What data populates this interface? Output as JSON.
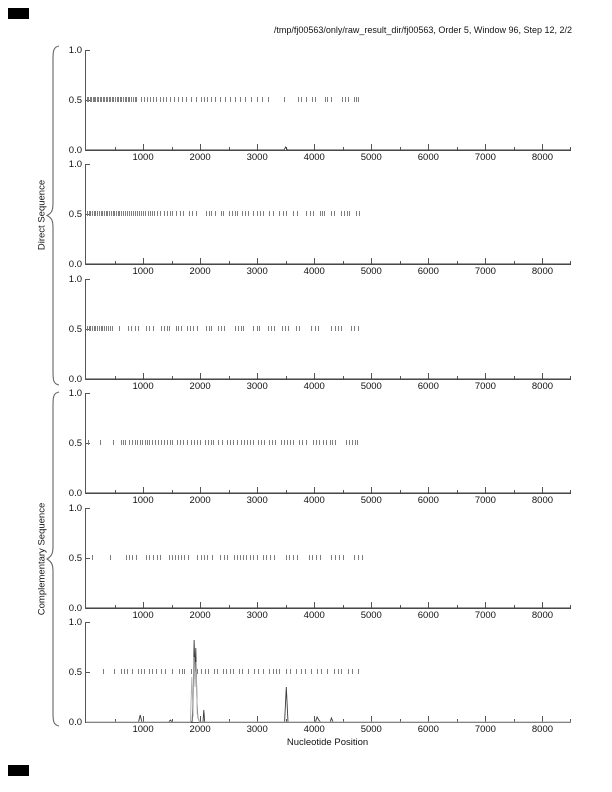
{
  "page": {
    "title": "/tmp/fj00563/only/raw_result_dir/fj00563, Order 5, Window 96, Step 12, 2/2",
    "xlabel": "Nucleotide Position",
    "direct_label": "Direct Sequence",
    "complementary_label": "Complementary Sequence"
  },
  "colors": {
    "axis": "#555555",
    "rug_mark": "#7d7d7d",
    "curve_primary": "#3c3c3c",
    "curve_secondary": "#b0b0b0",
    "text": "#111111",
    "corner_mark": "#000000"
  },
  "chart_data": {
    "type": "line",
    "title": "/tmp/fj00563/only/raw_result_dir/fj00563, Order 5, Window 96, Step 12, 2/2",
    "xlabel": "Nucleotide Position",
    "ylabel": "",
    "axis": {
      "xlim": [
        0,
        8500
      ],
      "ylim": [
        0,
        1
      ],
      "xticks_major": [
        1000,
        2000,
        3000,
        4000,
        5000,
        6000,
        7000,
        8000
      ],
      "xtick_labels": [
        "1000",
        "2000",
        "3000",
        "4000",
        "5000",
        "6000",
        "7000",
        "8000"
      ],
      "xticks_minor": [
        500,
        1500,
        2500,
        3500,
        4500,
        5500,
        6500,
        7500,
        8500
      ],
      "yticks": [
        0,
        0.5,
        1
      ],
      "ytick_labels": [
        "0.0",
        "0.5",
        "1.0"
      ],
      "grid": false,
      "rug_level": 0.5
    },
    "panels": [
      {
        "name": "direct-1",
        "group": "Direct Sequence",
        "rug_marks": [
          15,
          40,
          65,
          90,
          115,
          140,
          165,
          190,
          215,
          240,
          265,
          290,
          315,
          345,
          375,
          400,
          425,
          450,
          480,
          510,
          540,
          565,
          590,
          615,
          645,
          675,
          700,
          730,
          760,
          790,
          820,
          850,
          880,
          960,
          1010,
          1065,
          1120,
          1170,
          1230,
          1290,
          1350,
          1410,
          1470,
          1540,
          1610,
          1680,
          1760,
          1840,
          1930,
          2010,
          2060,
          2120,
          2190,
          2260,
          2340,
          2430,
          2520,
          2610,
          2700,
          2790,
          2890,
          2990,
          3090,
          3190,
          3470,
          3720,
          3760,
          3860,
          3960,
          4010,
          4180,
          4220,
          4300,
          4480,
          4540,
          4600,
          4700,
          4730,
          4760
        ],
        "series": [
          {
            "name": "coding-potential",
            "values": [
              [
                0,
                0
              ],
              [
                3470,
                0
              ],
              [
                3500,
                0.03
              ],
              [
                3530,
                0
              ],
              [
                8500,
                0
              ]
            ]
          }
        ]
      },
      {
        "name": "direct-2",
        "group": "Direct Sequence",
        "rug_marks": [
          15,
          45,
          75,
          105,
          135,
          165,
          195,
          225,
          255,
          285,
          315,
          345,
          375,
          405,
          435,
          465,
          495,
          525,
          555,
          585,
          615,
          650,
          685,
          720,
          755,
          790,
          825,
          860,
          895,
          930,
          965,
          1000,
          1040,
          1080,
          1120,
          1160,
          1200,
          1250,
          1300,
          1370,
          1420,
          1470,
          1510,
          1580,
          1640,
          1700,
          1800,
          1860,
          1920,
          2100,
          2150,
          2190,
          2260,
          2370,
          2400,
          2510,
          2560,
          2610,
          2650,
          2740,
          2790,
          2840,
          2930,
          2990,
          3050,
          3100,
          3210,
          3280,
          3390,
          3450,
          3510,
          3630,
          3700,
          3860,
          3920,
          3980,
          4100,
          4140,
          4175,
          4300,
          4350,
          4470,
          4530,
          4570,
          4610,
          4740,
          4790
        ],
        "series": [
          {
            "name": "coding-potential",
            "values": [
              [
                0,
                0
              ],
              [
                8500,
                0
              ]
            ]
          }
        ]
      },
      {
        "name": "direct-3",
        "group": "Direct Sequence",
        "rug_marks": [
          15,
          45,
          75,
          105,
          135,
          165,
          195,
          225,
          255,
          285,
          315,
          350,
          385,
          420,
          455,
          580,
          740,
          790,
          850,
          910,
          1050,
          1110,
          1180,
          1310,
          1370,
          1420,
          1460,
          1580,
          1620,
          1670,
          1770,
          1820,
          1880,
          1950,
          2100,
          2150,
          2190,
          2320,
          2370,
          2420,
          2610,
          2660,
          2710,
          2750,
          2930,
          2990,
          3040,
          3190,
          3250,
          3300,
          3440,
          3490,
          3540,
          3680,
          3730,
          3950,
          4010,
          4060,
          4300,
          4360,
          4420,
          4470,
          4650,
          4700,
          4760
        ],
        "series": [
          {
            "name": "coding-potential",
            "values": [
              [
                0,
                0
              ],
              [
                8500,
                0
              ]
            ]
          }
        ]
      },
      {
        "name": "complementary-1",
        "group": "Complementary Sequence",
        "rug_marks": [
          40,
          240,
          480,
          615,
          650,
          685,
          755,
          800,
          850,
          895,
          945,
          990,
          1030,
          1070,
          1110,
          1160,
          1210,
          1260,
          1320,
          1370,
          1420,
          1470,
          1510,
          1600,
          1650,
          1700,
          1770,
          1840,
          1900,
          1950,
          2000,
          2090,
          2140,
          2190,
          2230,
          2320,
          2390,
          2470,
          2520,
          2570,
          2650,
          2720,
          2770,
          2820,
          2880,
          2930,
          3020,
          3070,
          3120,
          3210,
          3260,
          3310,
          3420,
          3470,
          3520,
          3580,
          3630,
          3740,
          3790,
          3850,
          3980,
          4030,
          4090,
          4160,
          4210,
          4270,
          4320,
          4370,
          4560,
          4610,
          4670,
          4720,
          4750
        ],
        "series": [
          {
            "name": "coding-potential",
            "values": [
              [
                0,
                0
              ],
              [
                8500,
                0
              ]
            ]
          }
        ]
      },
      {
        "name": "complementary-2",
        "group": "Complementary Sequence",
        "rug_marks": [
          100,
          420,
          700,
          750,
          810,
          870,
          1050,
          1110,
          1170,
          1240,
          1300,
          1450,
          1500,
          1560,
          1610,
          1670,
          1720,
          1780,
          1950,
          2010,
          2060,
          2120,
          2200,
          2350,
          2410,
          2470,
          2600,
          2650,
          2700,
          2760,
          2810,
          2870,
          2930,
          3000,
          3100,
          3160,
          3230,
          3300,
          3500,
          3560,
          3630,
          3700,
          3900,
          3960,
          4030,
          4100,
          4300,
          4360,
          4430,
          4500,
          4700,
          4760,
          4830
        ],
        "series": [
          {
            "name": "coding-potential",
            "values": [
              [
                0,
                0
              ],
              [
                8500,
                0
              ]
            ]
          }
        ]
      },
      {
        "name": "complementary-3",
        "group": "Complementary Sequence",
        "rug_marks": [
          300,
          490,
          615,
          660,
          720,
          805,
          910,
          960,
          1020,
          1100,
          1160,
          1230,
          1315,
          1385,
          1510,
          1630,
          1680,
          1720,
          1840,
          1890,
          1950,
          2020,
          2080,
          2140,
          2250,
          2300,
          2400,
          2460,
          2520,
          2580,
          2680,
          2740,
          2840,
          2950,
          3010,
          3100,
          3210,
          3270,
          3330,
          3390,
          3510,
          3570,
          3680,
          3770,
          3830,
          3950,
          4050,
          4110,
          4230,
          4350,
          4410,
          4470,
          4600,
          4660,
          4760
        ],
        "series": [
          {
            "name": "coding-potential",
            "values": [
              [
                0,
                0
              ],
              [
                920,
                0
              ],
              [
                950,
                0.07
              ],
              [
                980,
                0
              ],
              [
                1450,
                0
              ],
              [
                1480,
                0.02
              ],
              [
                1510,
                0
              ],
              [
                1860,
                0
              ],
              [
                1880,
                0.3
              ],
              [
                1895,
                0.82
              ],
              [
                1910,
                0.5
              ],
              [
                1925,
                0.74
              ],
              [
                1945,
                0.2
              ],
              [
                1960,
                0.05
              ],
              [
                1990,
                0
              ],
              [
                2050,
                0
              ],
              [
                2065,
                0.12
              ],
              [
                2080,
                0
              ],
              [
                3480,
                0
              ],
              [
                3510,
                0.35
              ],
              [
                3540,
                0
              ],
              [
                4020,
                0
              ],
              [
                4050,
                0.05
              ],
              [
                4080,
                0.02
              ],
              [
                4110,
                0
              ],
              [
                4280,
                0
              ],
              [
                4300,
                0.04
              ],
              [
                4330,
                0
              ],
              [
                8500,
                0
              ]
            ]
          },
          {
            "name": "coding-potential-alt",
            "values": [
              [
                0,
                0
              ],
              [
                1830,
                0
              ],
              [
                1855,
                0.45
              ],
              [
                1875,
                0.05
              ],
              [
                1895,
                0.65
              ],
              [
                1912,
                0.35
              ],
              [
                1928,
                0.6
              ],
              [
                1950,
                0.08
              ],
              [
                1985,
                0
              ],
              [
                8500,
                0
              ]
            ]
          }
        ]
      }
    ]
  }
}
